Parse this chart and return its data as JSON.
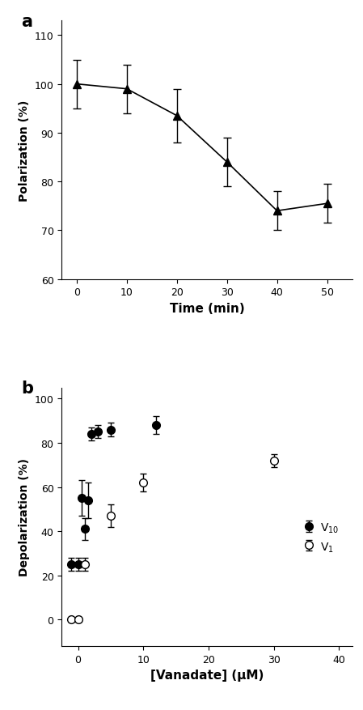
{
  "panel_a": {
    "title": "a",
    "x": [
      0,
      10,
      20,
      30,
      40,
      50
    ],
    "y": [
      100,
      99,
      93.5,
      84,
      74,
      75.5
    ],
    "yerr": [
      5,
      5,
      5.5,
      5,
      4,
      4
    ],
    "xlabel": "Time (min)",
    "ylabel": "Polarization (%)",
    "ylim": [
      60,
      113
    ],
    "yticks": [
      60,
      70,
      80,
      90,
      100,
      110
    ],
    "xlim": [
      -3,
      55
    ],
    "xticks": [
      0,
      10,
      20,
      30,
      40,
      50
    ]
  },
  "panel_b": {
    "title": "b",
    "xlabel": "[Vanadate] (μM)",
    "ylabel": "Depolarization (%)",
    "ylim": [
      -12,
      105
    ],
    "yticks": [
      0,
      20,
      40,
      60,
      80,
      100
    ],
    "xlim": [
      -2.5,
      42
    ],
    "xticks": [
      0,
      10,
      20,
      30,
      40
    ],
    "v10_x": [
      -1,
      0,
      0.5,
      1,
      1.5,
      2,
      3,
      5,
      12
    ],
    "v10_y": [
      25,
      25,
      55,
      41,
      54,
      84,
      85,
      86,
      88
    ],
    "v10_yerr": [
      3,
      3,
      8,
      5,
      8,
      3,
      3,
      3,
      4
    ],
    "v1_x": [
      -1,
      0,
      1,
      5,
      10,
      30
    ],
    "v1_y": [
      0,
      0,
      25,
      47,
      62,
      72
    ],
    "v1_yerr": [
      1,
      1,
      3,
      5,
      4,
      3
    ],
    "legend_labels": [
      "V$_{10}$",
      "V$_{1}$"
    ],
    "fit_v10_xmax": 12,
    "fit_v1_xmax": 35
  },
  "line_color": "#000000",
  "marker_color_filled": "#000000",
  "marker_color_open": "#ffffff",
  "background_color": "#ffffff"
}
